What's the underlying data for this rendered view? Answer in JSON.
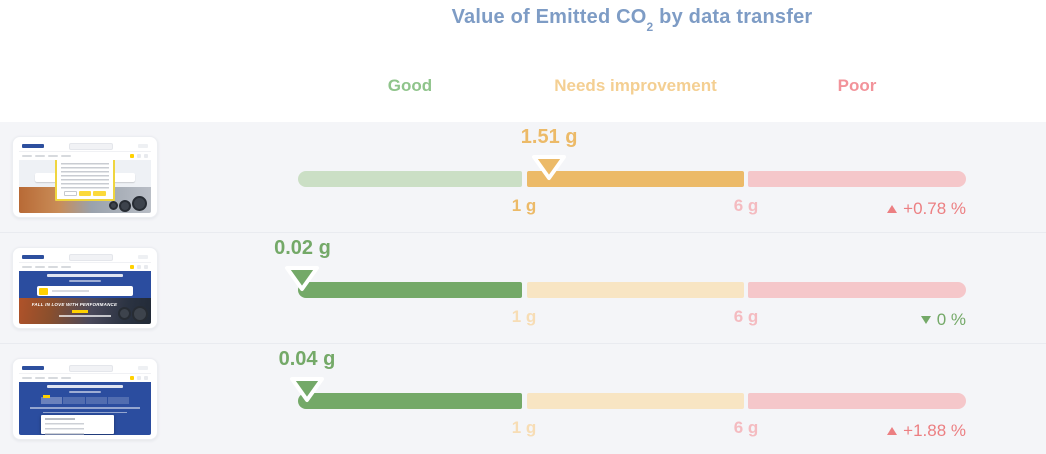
{
  "palette": {
    "title": "#7e9cc5",
    "good_header": "#8fc48b",
    "warn_header": "#f4cf92",
    "poor_header": "#f2939a",
    "good_active": "#74a968",
    "good_pale": "#cbdfc5",
    "warn_active": "#ecba68",
    "warn_pale": "#f8e5c3",
    "poor_active": "#f29399",
    "poor_pale": "#f5c7ca",
    "warn_tick_pale": "#f7ddb5",
    "poor_tick_pale": "#f4bbc0",
    "change_up_red": "#ec7f82",
    "change_down_green": "#74a968"
  },
  "title": {
    "prefix": "Value of Emitted CO",
    "subscript": "2",
    "suffix": " by data transfer"
  },
  "legend": {
    "good": "Good",
    "needs_improvement": "Needs improvement",
    "poor": "Poor"
  },
  "chart_data": {
    "type": "bullet",
    "unit": "g",
    "scale": {
      "min": 0,
      "boundary1": 1,
      "boundary2": 6,
      "max": 11,
      "boundary1_label": "1 g",
      "boundary2_label": "6 g"
    },
    "zones": [
      "Good",
      "Needs improvement",
      "Poor"
    ],
    "rows": [
      {
        "value": 1.51,
        "value_label": "1.51 g",
        "zone": "Needs improvement",
        "change_label": "+0.78 %",
        "change_direction": "up",
        "change_color": "#ec7f82",
        "thumbnail_icon": "michelin-page-cookie-consent-screenshot"
      },
      {
        "value": 0.02,
        "value_label": "0.02 g",
        "zone": "Good",
        "change_label": "0 %",
        "change_direction": "down",
        "change_color": "#74a968",
        "thumbnail_icon": "michelin-homepage-hero-screenshot"
      },
      {
        "value": 0.04,
        "value_label": "0.04 g",
        "zone": "Good",
        "change_label": "+1.88 %",
        "change_direction": "up",
        "change_color": "#ec7f82",
        "thumbnail_icon": "michelin-page-dropdown-open-screenshot"
      }
    ]
  },
  "thumbnails": {
    "hero_caption": "FALL IN LOVE WITH PERFORMANCE"
  }
}
